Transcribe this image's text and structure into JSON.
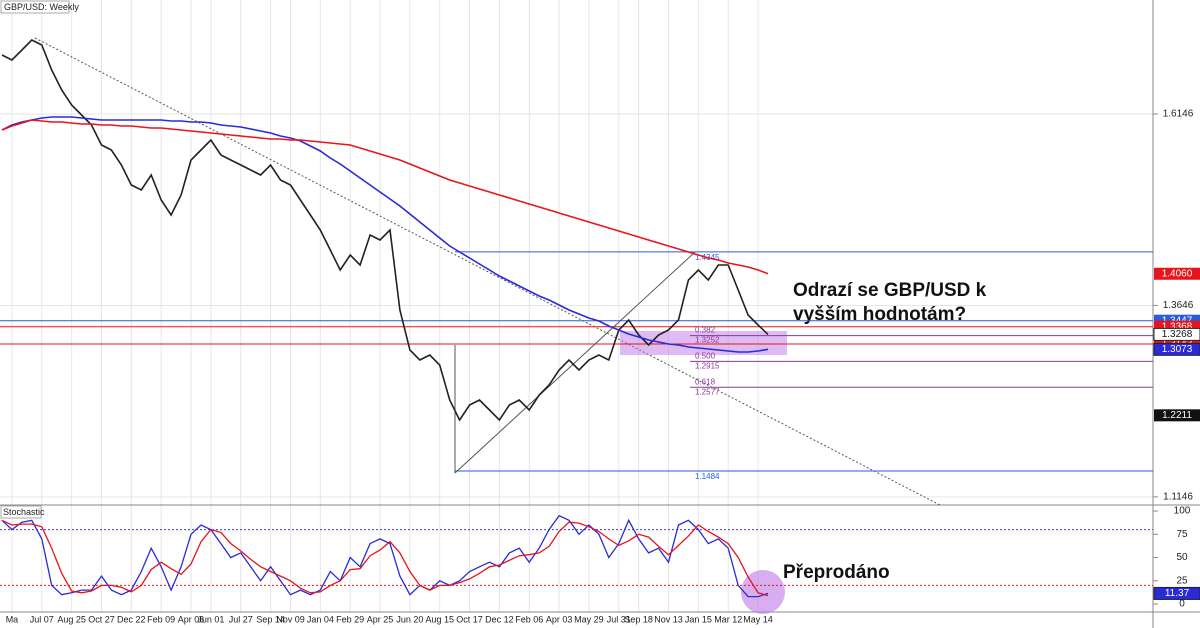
{
  "header": {
    "title": "GBP/USD: Weekly"
  },
  "chart_data": [
    {
      "type": "line",
      "categories": [
        null,
        "Ma",
        null,
        null,
        "Jul 07",
        null,
        null,
        "Aug 25",
        null,
        null,
        "Oct 27",
        null,
        null,
        "Dec 22",
        null,
        null,
        "Feb 09",
        null,
        null,
        "Apr 06",
        null,
        "Jun 01",
        null,
        null,
        "Jul 27",
        null,
        null,
        "Sep 14",
        null,
        "Nov 09",
        null,
        null,
        "Jan 04",
        null,
        null,
        "Feb 29",
        null,
        null,
        "Apr 25",
        null,
        null,
        "Jun 20",
        null,
        null,
        "Aug 15",
        null,
        null,
        "Oct 17",
        null,
        null,
        "Dec 12",
        null,
        null,
        "Feb 06",
        null,
        null,
        "Apr 03",
        null,
        null,
        "May 29",
        null,
        null,
        "Jul 31",
        null,
        "Sep 18",
        null,
        null,
        "Nov 13",
        null,
        null,
        "Jan 15",
        null,
        null,
        "Mar 12",
        null,
        null,
        "May 14",
        null
      ],
      "series": [
        {
          "color": "#222222",
          "values": [
            1.6917,
            1.6851,
            1.6982,
            1.7113,
            1.7047,
            1.6721,
            1.646,
            1.6264,
            1.6133,
            1.6003,
            1.5741,
            1.5676,
            1.548,
            1.5219,
            1.5154,
            1.535,
            1.5023,
            1.4827,
            1.5088,
            1.5545,
            1.5676,
            1.5807,
            1.5611,
            1.5545,
            1.548,
            1.5415,
            1.535,
            1.548,
            1.5284,
            1.5219,
            1.5023,
            1.4827,
            1.4631,
            1.437,
            1.4109,
            1.4305,
            1.4174,
            1.4566,
            1.4501,
            1.4631,
            1.3586,
            1.3064,
            1.2933,
            1.2999,
            1.2868,
            1.2411,
            1.215,
            1.2346,
            1.2411,
            1.228,
            1.215,
            1.2346,
            1.2411,
            1.228,
            1.2476,
            1.2607,
            1.2803,
            1.2933,
            1.2803,
            1.2933,
            1.2999,
            1.2933,
            1.3325,
            1.3456,
            1.326,
            1.3129,
            1.326,
            1.3325,
            1.3456,
            1.3978,
            1.4109,
            1.3978,
            1.4174,
            1.4174,
            1.3848,
            1.3521,
            1.3391,
            1.3268
          ]
        },
        {
          "color": "#2a2ad9",
          "values": [
            1.5937,
            1.6003,
            1.6042,
            1.6068,
            1.6094,
            1.6107,
            1.6107,
            1.6107,
            1.6094,
            1.6081,
            1.6068,
            1.6068,
            1.6068,
            1.6068,
            1.6068,
            1.6068,
            1.6068,
            1.6055,
            1.6055,
            1.6042,
            1.6042,
            1.6029,
            1.6003,
            1.5989,
            1.5976,
            1.595,
            1.5924,
            1.5898,
            1.5859,
            1.5833,
            1.5794,
            1.5728,
            1.5663,
            1.5572,
            1.5493,
            1.5402,
            1.531,
            1.5219,
            1.5128,
            1.5036,
            1.4945,
            1.484,
            1.4736,
            1.4631,
            1.4527,
            1.4422,
            1.4344,
            1.4266,
            1.4187,
            1.4109,
            1.403,
            1.3965,
            1.39,
            1.3835,
            1.3769,
            1.3717,
            1.3652,
            1.3586,
            1.3534,
            1.3482,
            1.3443,
            1.3377,
            1.3325,
            1.3273,
            1.3234,
            1.3195,
            1.3169,
            1.3142,
            1.3129,
            1.3103,
            1.309,
            1.3077,
            1.3064,
            1.3051,
            1.3038,
            1.3038,
            1.3051,
            1.3073
          ]
        },
        {
          "color": "#e8141c",
          "values": [
            1.5937,
            1.5989,
            1.6029,
            1.6068,
            1.6055,
            1.6042,
            1.6042,
            1.6029,
            1.6016,
            1.6016,
            1.6003,
            1.6003,
            1.5989,
            1.5989,
            1.5976,
            1.5963,
            1.5963,
            1.595,
            1.5937,
            1.5924,
            1.5911,
            1.5898,
            1.5885,
            1.5872,
            1.5859,
            1.5846,
            1.5833,
            1.582,
            1.582,
            1.5807,
            1.5807,
            1.5794,
            1.5781,
            1.5767,
            1.5754,
            1.5741,
            1.5702,
            1.5663,
            1.5624,
            1.5585,
            1.5545,
            1.5493,
            1.5441,
            1.5389,
            1.5336,
            1.5284,
            1.5245,
            1.5206,
            1.5167,
            1.5128,
            1.5088,
            1.5049,
            1.501,
            1.4971,
            1.4932,
            1.4892,
            1.4853,
            1.4814,
            1.4775,
            1.4736,
            1.4697,
            1.4657,
            1.4618,
            1.4579,
            1.454,
            1.4501,
            1.4461,
            1.4422,
            1.4383,
            1.4344,
            1.4305,
            1.4266,
            1.4239,
            1.42,
            1.4174,
            1.4148,
            1.4109,
            1.406
          ]
        }
      ],
      "ylim": [
        1.104,
        1.7635
      ],
      "yticks": [
        1.6146,
        1.3646,
        1.1146
      ],
      "grid": true,
      "levels": [
        {
          "value": 1.3447,
          "color": "#2a5bd9"
        },
        {
          "value": 1.3368,
          "color": "#e8141c"
        },
        {
          "value": 1.3143,
          "color": "#e8141c"
        }
      ],
      "axis_labels": [
        {
          "value": 1.406,
          "label": "1.4060",
          "bg": "#e8141c",
          "fg": "#ffffff"
        },
        {
          "value": 1.2211,
          "label": "1.2211",
          "bg": "#111111",
          "fg": "#ffffff"
        }
      ],
      "fib_high": 1.4345,
      "fib_low": 1.1484,
      "fib_levels": [
        {
          "ratio": 0.382,
          "price": 1.3252
        },
        {
          "ratio": {
            "value": 0.5,
            "label": "0.500"
          },
          "price": 1.2915
        },
        {
          "ratio": 0.618,
          "price": 1.2577
        }
      ],
      "annotations": [
        "Odrazí se GBP/USD k",
        "vyšším hodnotám?"
      ]
    },
    {
      "type": "line",
      "title": "Stochastic",
      "series": [
        {
          "color": "#2a2ad9",
          "values": [
            90,
            80,
            88,
            90,
            70,
            20,
            10,
            12,
            15,
            15,
            30,
            15,
            10,
            15,
            35,
            60,
            40,
            15,
            40,
            75,
            85,
            80,
            65,
            50,
            55,
            40,
            25,
            40,
            25,
            10,
            15,
            10,
            15,
            35,
            25,
            50,
            40,
            65,
            70,
            65,
            30,
            10,
            20,
            15,
            25,
            20,
            25,
            35,
            40,
            45,
            40,
            55,
            60,
            45,
            60,
            80,
            95,
            90,
            75,
            85,
            75,
            50,
            65,
            90,
            70,
            55,
            60,
            45,
            85,
            90,
            80,
            65,
            70,
            60,
            20,
            8,
            8,
            11.37
          ]
        },
        {
          "color": "#e8141c",
          "values": [
            90,
            85,
            86,
            86,
            83,
            60,
            33,
            14,
            12,
            14,
            20,
            20,
            18,
            13,
            20,
            37,
            45,
            38,
            32,
            43,
            67,
            80,
            77,
            65,
            57,
            48,
            40,
            35,
            30,
            25,
            17,
            12,
            13,
            20,
            25,
            37,
            38,
            52,
            58,
            67,
            55,
            35,
            20,
            15,
            20,
            20,
            23,
            27,
            33,
            40,
            42,
            47,
            52,
            53,
            55,
            62,
            78,
            88,
            87,
            83,
            78,
            70,
            63,
            68,
            75,
            72,
            62,
            53,
            63,
            73,
            85,
            78,
            72,
            65,
            50,
            29,
            12,
            9
          ]
        }
      ],
      "ylim": [
        -8.6,
        106.5
      ],
      "yticks": [
        100,
        75,
        50,
        25,
        0
      ],
      "levels": [
        {
          "value": 80,
          "color": "#3a3ae0"
        },
        {
          "value": 20,
          "color": "#e8141c"
        }
      ],
      "annotations": [
        "Přeprodáno"
      ]
    }
  ]
}
